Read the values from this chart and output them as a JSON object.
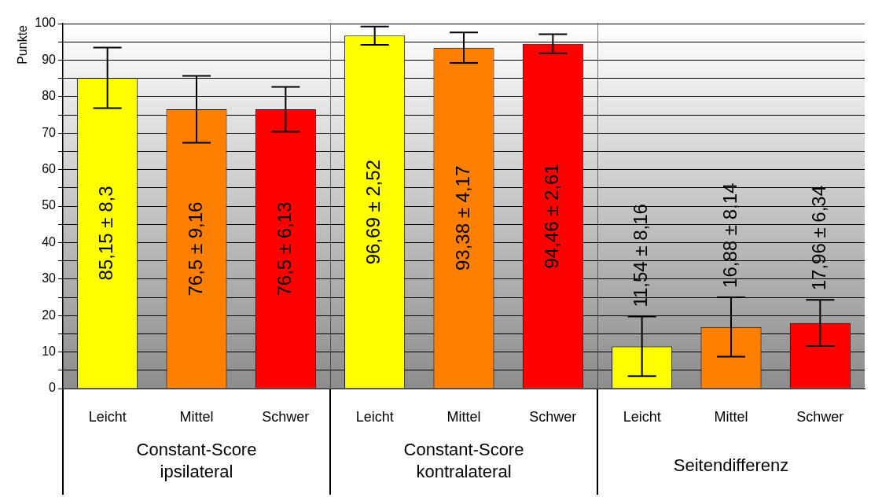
{
  "chart_data": [
    {
      "type": "bar",
      "ylabel": "Punkte",
      "xlabel": "Constant-Score ipsilateral",
      "categories": [
        "Leicht",
        "Mittel",
        "Schwer"
      ],
      "values": [
        85.15,
        76.5,
        76.5
      ],
      "colors": [
        "#ffff00",
        "#ff8000",
        "#ff0000"
      ],
      "errors": [
        8.3,
        9.16,
        6.13
      ],
      "value_labels": [
        "85,15 ± 8,3",
        "76,5 ± 9,16",
        "76,5 ± 6,13"
      ],
      "ylim": [
        0,
        100
      ],
      "yticks": [
        0,
        {
          "value": 5,
          "label": null
        },
        10,
        {
          "value": 15,
          "label": null
        },
        20,
        {
          "value": 25,
          "label": null
        },
        30,
        {
          "value": 35,
          "label": null
        },
        40,
        {
          "value": 45,
          "label": null
        },
        50,
        {
          "value": 55,
          "label": null
        },
        60,
        {
          "value": 65,
          "label": null
        },
        70,
        {
          "value": 75,
          "label": null
        },
        80,
        {
          "value": 85,
          "label": null
        },
        90,
        {
          "value": 95,
          "label": null
        },
        100
      ],
      "grid": "y"
    },
    {
      "type": "bar",
      "xlabel": "Constant-Score kontralateral",
      "categories": [
        "Leicht",
        "Mittel",
        "Schwer"
      ],
      "values": [
        96.69,
        93.38,
        94.46
      ],
      "colors": [
        "#ffff00",
        "#ff8000",
        "#ff0000"
      ],
      "errors": [
        2.52,
        4.17,
        2.61
      ],
      "value_labels": [
        "96,69 ± 2,52",
        "93,38 ± 4,17",
        "94,46 ± 2,61"
      ],
      "ylim": [
        0,
        100
      ],
      "yticks": [
        0,
        {
          "value": 5,
          "label": null
        },
        10,
        {
          "value": 15,
          "label": null
        },
        20,
        {
          "value": 25,
          "label": null
        },
        30,
        {
          "value": 35,
          "label": null
        },
        40,
        {
          "value": 45,
          "label": null
        },
        50,
        {
          "value": 55,
          "label": null
        },
        60,
        {
          "value": 65,
          "label": null
        },
        70,
        {
          "value": 75,
          "label": null
        },
        80,
        {
          "value": 85,
          "label": null
        },
        90,
        {
          "value": 95,
          "label": null
        },
        100
      ],
      "grid": "y",
      "tick_labels": "x"
    },
    {
      "type": "bar",
      "xlabel": "Seitendifferenz",
      "categories": [
        "Leicht",
        "Mittel",
        "Schwer"
      ],
      "values": [
        11.54,
        16.88,
        17.96
      ],
      "colors": [
        "#ffff00",
        "#ff8000",
        "#ff0000"
      ],
      "errors": [
        8.16,
        8.14,
        6.34
      ],
      "value_labels": [
        "11,54 ± 8,16",
        "16,88 ± 8,14",
        "17,96 ± 6,34"
      ],
      "ylim": [
        0,
        100
      ],
      "yticks": [
        0,
        {
          "value": 5,
          "label": null
        },
        10,
        {
          "value": 15,
          "label": null
        },
        20,
        {
          "value": 25,
          "label": null
        },
        30,
        {
          "value": 35,
          "label": null
        },
        40,
        {
          "value": 45,
          "label": null
        },
        50,
        {
          "value": 55,
          "label": null
        },
        60,
        {
          "value": 65,
          "label": null
        },
        70,
        {
          "value": 75,
          "label": null
        },
        80,
        {
          "value": 85,
          "label": null
        },
        90,
        {
          "value": 95,
          "label": null
        },
        100
      ],
      "grid": "y",
      "tick_labels": "x"
    }
  ]
}
